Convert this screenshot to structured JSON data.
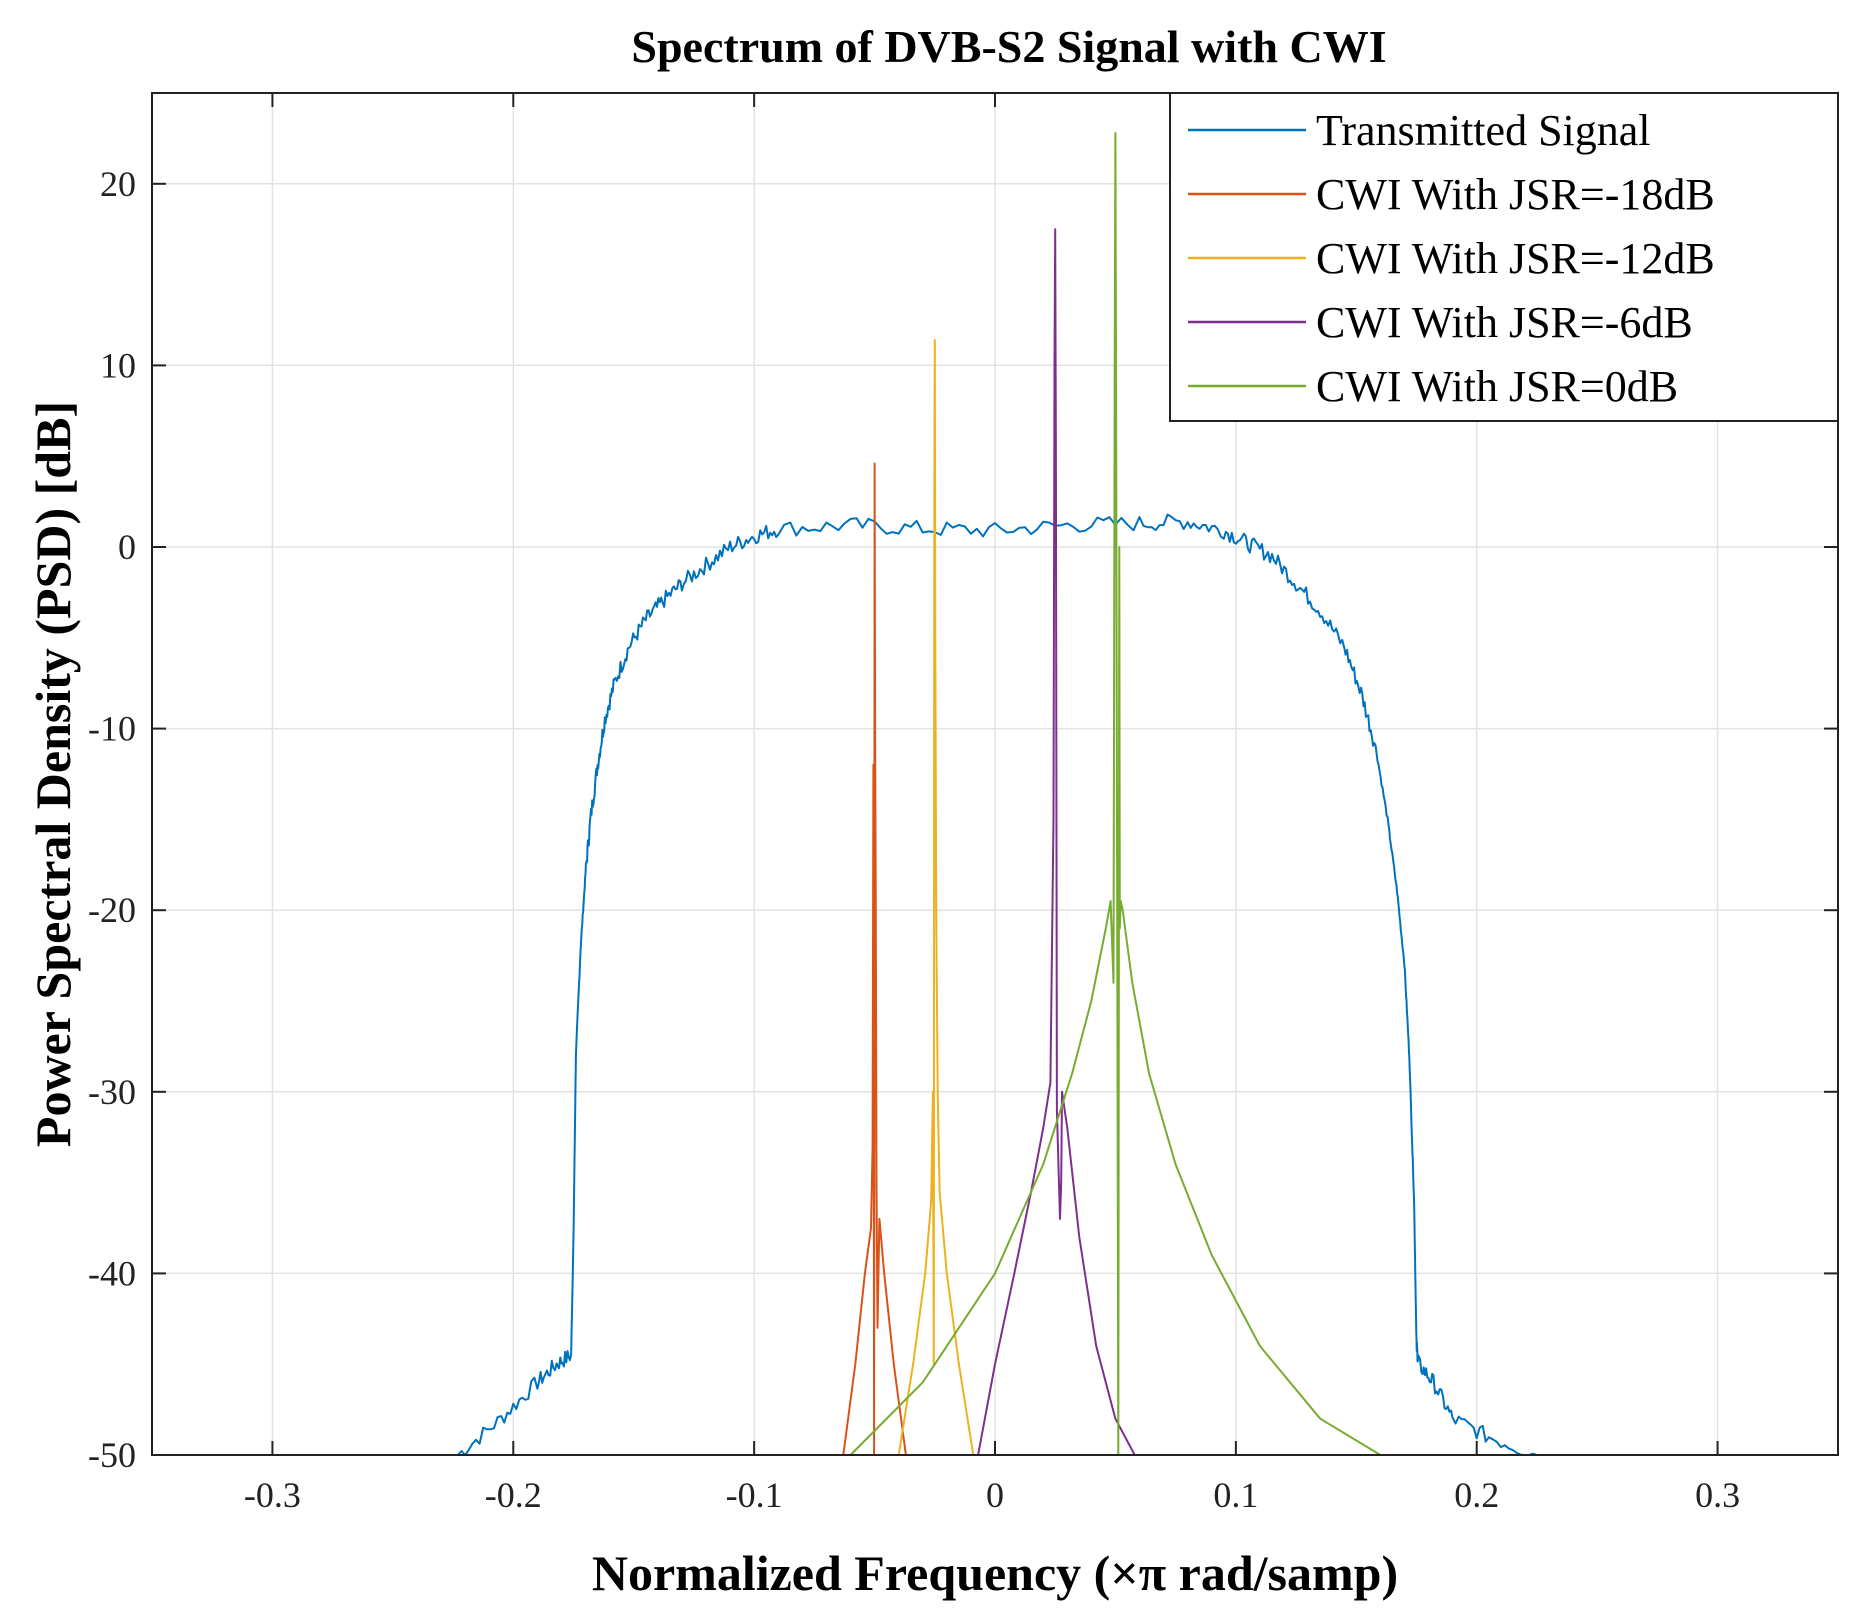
{
  "chart_data": {
    "type": "line",
    "title": "Spectrum of DVB-S2 Signal with CWI",
    "xlabel": "Normalized Frequency (×π rad/samp)",
    "ylabel": "Power Spectral Density (PSD) [dB]",
    "xlim": [
      -0.35,
      0.35
    ],
    "ylim": [
      -50,
      25
    ],
    "xticks": [
      -0.3,
      -0.2,
      -0.1,
      0,
      0.1,
      0.2,
      0.3
    ],
    "xtick_labels": [
      "-0.3",
      "-0.2",
      "-0.1",
      "0",
      "0.1",
      "0.2",
      "0.3"
    ],
    "yticks": [
      -50,
      -40,
      -30,
      -20,
      -10,
      0,
      10,
      20
    ],
    "ytick_labels": [
      "-50",
      "-40",
      "-30",
      "-20",
      "-10",
      "0",
      "10",
      "20"
    ],
    "grid": true,
    "legend_position": "top-right",
    "series": [
      {
        "name": "Transmitted Signal",
        "color": "#0072BD",
        "x": [
          -0.223,
          -0.205,
          -0.19,
          -0.182,
          -0.176,
          -0.175,
          -0.174,
          -0.172,
          -0.17,
          -0.168,
          -0.165,
          -0.162,
          -0.158,
          -0.152,
          -0.145,
          -0.138,
          -0.13,
          -0.12,
          -0.11,
          -0.1,
          -0.09,
          -0.06,
          -0.03,
          0,
          0.03,
          0.06,
          0.08,
          0.095,
          0.105,
          0.115,
          0.125,
          0.135,
          0.145,
          0.152,
          0.158,
          0.163,
          0.167,
          0.17,
          0.172,
          0.174,
          0.175,
          0.176,
          0.182,
          0.19,
          0.205,
          0.225
        ],
        "y": [
          -50,
          -48,
          -46,
          -45,
          -44.5,
          -38,
          -28,
          -22,
          -18,
          -15,
          -12,
          -9.5,
          -7.5,
          -5.5,
          -4,
          -3,
          -2,
          -1,
          0,
          0.6,
          1,
          1.2,
          1,
          0.9,
          1.2,
          1.3,
          1.4,
          0.9,
          0.2,
          -0.5,
          -2,
          -3.5,
          -5.5,
          -8,
          -11,
          -15,
          -19,
          -23,
          -28,
          -36,
          -44,
          -45,
          -46,
          -48,
          -49,
          -50
        ]
      },
      {
        "name": "CWI With JSR=-18dB",
        "color": "#D95319",
        "x": [
          -0.063,
          -0.058,
          -0.054,
          -0.0515,
          -0.0508,
          -0.0505,
          -0.0502,
          -0.05,
          -0.0498,
          -0.0495,
          -0.0492,
          -0.0488,
          -0.048,
          -0.046,
          -0.042,
          -0.037
        ],
        "y": [
          -50,
          -45,
          -40,
          -37.5,
          -33,
          -12,
          -50,
          4.6,
          -10,
          -20,
          -35,
          -43,
          -37,
          -40,
          -45,
          -50
        ]
      },
      {
        "name": "CWI With JSR=-12dB",
        "color": "#EDB120",
        "x": [
          -0.04,
          -0.034,
          -0.029,
          -0.0265,
          -0.0258,
          -0.0254,
          -0.0252,
          -0.025,
          -0.0248,
          -0.0244,
          -0.0238,
          -0.023,
          -0.02,
          -0.015,
          -0.009
        ],
        "y": [
          -50,
          -45,
          -40,
          -36,
          -30,
          -45,
          2,
          11.4,
          -5,
          -20,
          -30,
          -35.5,
          -40,
          -45,
          -50
        ],
        "y_note": "dip to -44.5 near -0.0256"
      },
      {
        "name": "CWI With JSR=-6dB",
        "color": "#7E2F8E",
        "x": [
          -0.007,
          0.0,
          0.008,
          0.015,
          0.02,
          0.023,
          0.0243,
          0.0247,
          0.025,
          0.0253,
          0.0257,
          0.027,
          0.0275,
          0.0278,
          0.03,
          0.035,
          0.042,
          0.05,
          0.058
        ],
        "y": [
          -50,
          -45,
          -40,
          -35.5,
          -32,
          -29.5,
          -15,
          10,
          17.5,
          5,
          -31,
          -37,
          -35,
          -30,
          -32,
          -38,
          -44,
          -48,
          -50
        ]
      },
      {
        "name": "CWI With JSR=0dB",
        "color": "#77AC30",
        "x": [
          -0.06,
          -0.03,
          0.0,
          0.02,
          0.032,
          0.04,
          0.046,
          0.048,
          0.0492,
          0.0497,
          0.05,
          0.0503,
          0.0508,
          0.0512,
          0.0516,
          0.0518,
          0.0522,
          0.053,
          0.057,
          0.064,
          0.075,
          0.09,
          0.11,
          0.135,
          0.16
        ],
        "y": [
          -50,
          -46,
          -40,
          -34,
          -29,
          -25,
          -21,
          -19.5,
          -24,
          10,
          22.8,
          5,
          -25,
          -50,
          0,
          -21,
          -19.5,
          -20,
          -24,
          -29,
          -34,
          -39,
          -44,
          -48,
          -50
        ]
      }
    ]
  }
}
